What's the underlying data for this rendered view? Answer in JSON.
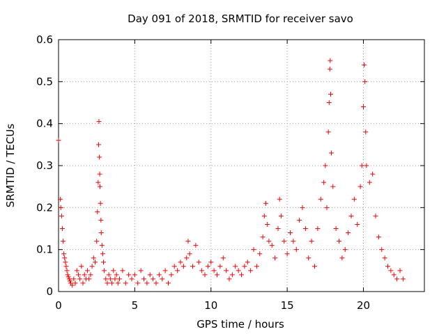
{
  "chart_data": {
    "type": "scatter",
    "title": "Day 091 of 2018, SRMTID for receiver savo",
    "xlabel": "GPS time / hours",
    "ylabel": "SRMTID / TECUs",
    "xlim": [
      0,
      24
    ],
    "ylim": [
      0,
      0.6
    ],
    "xticks": [
      0,
      5,
      10,
      15,
      20
    ],
    "yticks": [
      0,
      0.1,
      0.2,
      0.3,
      0.4,
      0.5,
      0.6
    ],
    "xtick_labels": [
      "0",
      "5",
      "10",
      "15",
      "20"
    ],
    "ytick_labels": [
      "0",
      "0.1",
      "0.2",
      "0.3",
      "0.4",
      "0.5",
      "0.6"
    ],
    "grid": true,
    "marker": "+",
    "color": "#ff0000",
    "series": [
      {
        "name": "SRMTID",
        "points": [
          [
            0.0,
            0.36
          ],
          [
            0.12,
            0.22
          ],
          [
            0.15,
            0.2
          ],
          [
            0.2,
            0.18
          ],
          [
            0.25,
            0.15
          ],
          [
            0.3,
            0.12
          ],
          [
            0.35,
            0.09
          ],
          [
            0.4,
            0.08
          ],
          [
            0.45,
            0.07
          ],
          [
            0.5,
            0.06
          ],
          [
            0.55,
            0.05
          ],
          [
            0.6,
            0.04
          ],
          [
            0.65,
            0.035
          ],
          [
            0.7,
            0.03
          ],
          [
            0.75,
            0.025
          ],
          [
            0.8,
            0.02
          ],
          [
            0.9,
            0.015
          ],
          [
            1.0,
            0.03
          ],
          [
            1.1,
            0.02
          ],
          [
            1.2,
            0.05
          ],
          [
            1.3,
            0.04
          ],
          [
            1.4,
            0.03
          ],
          [
            1.5,
            0.06
          ],
          [
            1.6,
            0.02
          ],
          [
            1.7,
            0.04
          ],
          [
            1.8,
            0.03
          ],
          [
            1.9,
            0.05
          ],
          [
            2.0,
            0.03
          ],
          [
            2.1,
            0.04
          ],
          [
            2.2,
            0.06
          ],
          [
            2.3,
            0.08
          ],
          [
            2.4,
            0.07
          ],
          [
            2.5,
            0.12
          ],
          [
            2.55,
            0.19
          ],
          [
            2.6,
            0.26
          ],
          [
            2.63,
            0.35
          ],
          [
            2.65,
            0.405
          ],
          [
            2.68,
            0.32
          ],
          [
            2.7,
            0.28
          ],
          [
            2.72,
            0.25
          ],
          [
            2.75,
            0.21
          ],
          [
            2.78,
            0.17
          ],
          [
            2.8,
            0.14
          ],
          [
            2.85,
            0.11
          ],
          [
            2.9,
            0.09
          ],
          [
            2.95,
            0.07
          ],
          [
            3.0,
            0.05
          ],
          [
            3.1,
            0.03
          ],
          [
            3.2,
            0.02
          ],
          [
            3.3,
            0.04
          ],
          [
            3.4,
            0.03
          ],
          [
            3.5,
            0.02
          ],
          [
            3.6,
            0.05
          ],
          [
            3.7,
            0.03
          ],
          [
            3.8,
            0.04
          ],
          [
            3.9,
            0.02
          ],
          [
            4.0,
            0.03
          ],
          [
            4.2,
            0.05
          ],
          [
            4.4,
            0.02
          ],
          [
            4.6,
            0.04
          ],
          [
            4.8,
            0.03
          ],
          [
            5.0,
            0.04
          ],
          [
            5.2,
            0.02
          ],
          [
            5.4,
            0.05
          ],
          [
            5.6,
            0.03
          ],
          [
            5.8,
            0.02
          ],
          [
            6.0,
            0.04
          ],
          [
            6.2,
            0.03
          ],
          [
            6.4,
            0.02
          ],
          [
            6.6,
            0.04
          ],
          [
            6.8,
            0.03
          ],
          [
            7.0,
            0.05
          ],
          [
            7.2,
            0.02
          ],
          [
            7.4,
            0.04
          ],
          [
            7.6,
            0.06
          ],
          [
            7.8,
            0.05
          ],
          [
            8.0,
            0.07
          ],
          [
            8.2,
            0.06
          ],
          [
            8.4,
            0.08
          ],
          [
            8.5,
            0.12
          ],
          [
            8.6,
            0.09
          ],
          [
            8.8,
            0.06
          ],
          [
            9.0,
            0.11
          ],
          [
            9.2,
            0.07
          ],
          [
            9.4,
            0.05
          ],
          [
            9.6,
            0.04
          ],
          [
            9.8,
            0.06
          ],
          [
            10.0,
            0.07
          ],
          [
            10.2,
            0.05
          ],
          [
            10.4,
            0.04
          ],
          [
            10.6,
            0.06
          ],
          [
            10.8,
            0.08
          ],
          [
            11.0,
            0.05
          ],
          [
            11.2,
            0.03
          ],
          [
            11.4,
            0.04
          ],
          [
            11.6,
            0.06
          ],
          [
            11.8,
            0.05
          ],
          [
            12.0,
            0.04
          ],
          [
            12.2,
            0.06
          ],
          [
            12.4,
            0.07
          ],
          [
            12.6,
            0.05
          ],
          [
            12.8,
            0.1
          ],
          [
            13.0,
            0.06
          ],
          [
            13.2,
            0.09
          ],
          [
            13.4,
            0.13
          ],
          [
            13.5,
            0.18
          ],
          [
            13.6,
            0.21
          ],
          [
            13.7,
            0.16
          ],
          [
            13.8,
            0.12
          ],
          [
            14.0,
            0.11
          ],
          [
            14.2,
            0.08
          ],
          [
            14.4,
            0.15
          ],
          [
            14.5,
            0.22
          ],
          [
            14.6,
            0.18
          ],
          [
            14.8,
            0.12
          ],
          [
            15.0,
            0.09
          ],
          [
            15.2,
            0.14
          ],
          [
            15.4,
            0.12
          ],
          [
            15.6,
            0.1
          ],
          [
            15.8,
            0.17
          ],
          [
            16.0,
            0.2
          ],
          [
            16.2,
            0.15
          ],
          [
            16.4,
            0.08
          ],
          [
            16.6,
            0.12
          ],
          [
            16.8,
            0.06
          ],
          [
            17.0,
            0.15
          ],
          [
            17.2,
            0.22
          ],
          [
            17.4,
            0.26
          ],
          [
            17.5,
            0.3
          ],
          [
            17.6,
            0.2
          ],
          [
            17.7,
            0.38
          ],
          [
            17.75,
            0.45
          ],
          [
            17.8,
            0.53
          ],
          [
            17.82,
            0.55
          ],
          [
            17.85,
            0.47
          ],
          [
            17.9,
            0.33
          ],
          [
            18.0,
            0.25
          ],
          [
            18.2,
            0.15
          ],
          [
            18.4,
            0.12
          ],
          [
            18.6,
            0.08
          ],
          [
            18.8,
            0.1
          ],
          [
            19.0,
            0.14
          ],
          [
            19.2,
            0.18
          ],
          [
            19.4,
            0.22
          ],
          [
            19.6,
            0.16
          ],
          [
            19.8,
            0.25
          ],
          [
            19.9,
            0.3
          ],
          [
            20.0,
            0.44
          ],
          [
            20.05,
            0.54
          ],
          [
            20.1,
            0.5
          ],
          [
            20.15,
            0.38
          ],
          [
            20.2,
            0.3
          ],
          [
            20.4,
            0.26
          ],
          [
            20.6,
            0.28
          ],
          [
            20.8,
            0.18
          ],
          [
            21.0,
            0.13
          ],
          [
            21.2,
            0.1
          ],
          [
            21.4,
            0.08
          ],
          [
            21.6,
            0.06
          ],
          [
            21.8,
            0.05
          ],
          [
            22.0,
            0.04
          ],
          [
            22.2,
            0.03
          ],
          [
            22.4,
            0.05
          ],
          [
            22.6,
            0.03
          ]
        ]
      }
    ]
  }
}
